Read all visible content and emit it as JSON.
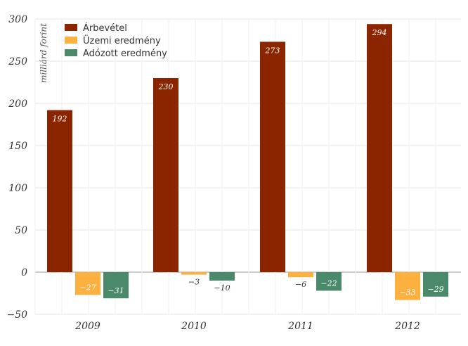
{
  "chart_data": {
    "type": "bar",
    "categories": [
      "2009",
      "2010",
      "2011",
      "2012"
    ],
    "series": [
      {
        "name": "Árbevétel",
        "values": [
          192,
          230,
          273,
          294
        ],
        "color": "#8b2500"
      },
      {
        "name": "Üzemi eredmény",
        "values": [
          -27,
          -3,
          -6,
          -33
        ],
        "color": "#fbb040"
      },
      {
        "name": "Adózott eredmény",
        "values": [
          -31,
          -10,
          -22,
          -29
        ],
        "color": "#4a8a6a"
      }
    ],
    "data_labels": [
      [
        "192",
        "230",
        "273",
        "294"
      ],
      [
        "−27",
        "−3",
        "−6",
        "−33"
      ],
      [
        "−31",
        "−10",
        "−22",
        "−29"
      ]
    ],
    "yticks": [
      300,
      250,
      200,
      150,
      100,
      50,
      0,
      -50
    ],
    "ytick_labels": [
      "300",
      "250",
      "200",
      "150",
      "100",
      "50",
      "0",
      "−50"
    ],
    "ylim": [
      -50,
      300
    ],
    "ylabel": "milliárd forint",
    "title": "",
    "xlabel": "",
    "legend": "top-left",
    "grid": true
  }
}
